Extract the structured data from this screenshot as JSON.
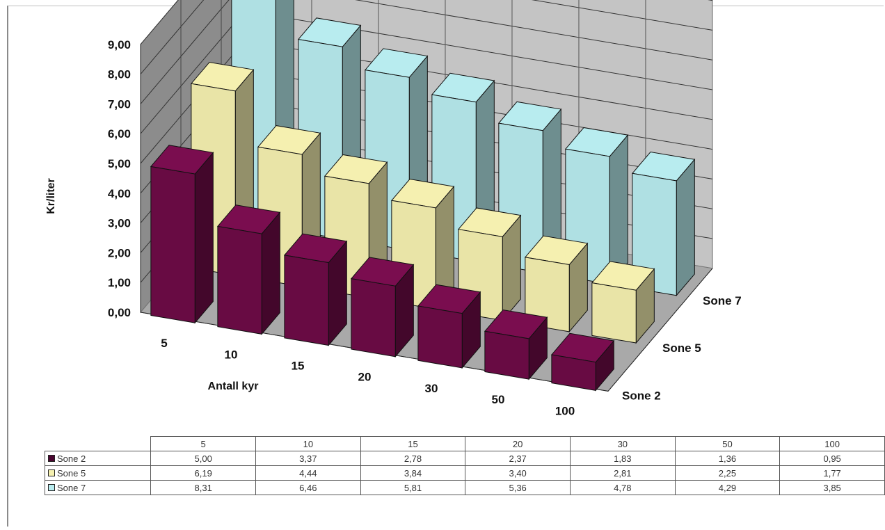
{
  "chart_data": {
    "type": "bar",
    "style": "3d-clustered-depth",
    "categories": [
      "5",
      "10",
      "15",
      "20",
      "30",
      "50",
      "100"
    ],
    "series": [
      {
        "name": "Sone 2",
        "values": [
          5.0,
          3.37,
          2.78,
          2.37,
          1.83,
          1.36,
          0.95
        ],
        "color": "#7a0d4f",
        "labels": [
          "5,00",
          "3,37",
          "2,78",
          "2,37",
          "1,83",
          "1,36",
          "0,95"
        ]
      },
      {
        "name": "Sone 5",
        "values": [
          6.19,
          4.44,
          3.84,
          3.4,
          2.81,
          2.25,
          1.77
        ],
        "color": "#f5f0b0",
        "labels": [
          "6,19",
          "4,44",
          "3,84",
          "3,40",
          "2,81",
          "2,25",
          "1,77"
        ]
      },
      {
        "name": "Sone 7",
        "values": [
          8.31,
          6.46,
          5.81,
          5.36,
          4.78,
          4.29,
          3.85
        ],
        "color": "#b8ecef",
        "labels": [
          "8,31",
          "6,46",
          "5,81",
          "5,36",
          "4,78",
          "4,29",
          "3,85"
        ]
      }
    ],
    "ylabel": "Kr/liter",
    "xlabel": "Antall kyr",
    "ylim": [
      0,
      9
    ],
    "yticks": [
      "0,00",
      "1,00",
      "2,00",
      "3,00",
      "4,00",
      "5,00",
      "6,00",
      "7,00",
      "8,00",
      "9,00"
    ],
    "grid": true,
    "legend": "data-table-below"
  },
  "colors": {
    "back_wall": "#8c8c8c",
    "side_wall": "#c4c4c4",
    "floor": "#a9a9a9"
  }
}
